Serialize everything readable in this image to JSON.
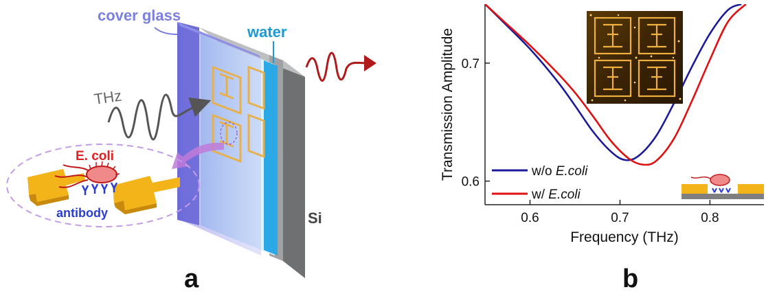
{
  "panel_a": {
    "label": "a",
    "cover_glass_label": "cover glass",
    "water_label": "water",
    "thz_label": "THz",
    "si_label": "Si",
    "ecoli_label": "E. coli",
    "antibody_label": "antibody"
  },
  "panel_b": {
    "label": "b"
  },
  "colors": {
    "cover_glass_text": "#7b7fe0",
    "water_text": "#1a9ad6",
    "ecoli_text": "#e02020",
    "antibody_text": "#2a3cd8",
    "series_without": "#1a1a9a",
    "series_with": "#e01010",
    "gold": "#f2b418",
    "dashed_ellipse": "#c49be8",
    "output_wave": "#b01a1a",
    "input_wave": "#555555"
  },
  "chart_data": {
    "type": "line",
    "xlabel": "Frequency (THz)",
    "ylabel": "Transmission Amplitude",
    "xlim": [
      0.55,
      0.86
    ],
    "ylim": [
      0.58,
      0.75
    ],
    "xticks": [
      0.6,
      0.7,
      0.8
    ],
    "xtick_labels": [
      "0.6",
      "0.7",
      "0.8"
    ],
    "yticks": [
      0.6,
      0.7
    ],
    "ytick_labels": [
      "0.6",
      "0.7"
    ],
    "grid": false,
    "legend_position": "bottom-left",
    "inset": "micrograph of gold split-ring resonator array with bacteria (top-center)",
    "series": [
      {
        "name": "w/o E.coli",
        "legend_prefix": "w/o ",
        "legend_italic": "E.coli",
        "color": "#1a1a9a",
        "x": [
          0.55,
          0.57,
          0.6,
          0.63,
          0.65,
          0.67,
          0.69,
          0.705,
          0.72,
          0.74,
          0.76,
          0.78,
          0.8,
          0.82,
          0.835
        ],
        "y": [
          0.75,
          0.735,
          0.712,
          0.685,
          0.664,
          0.642,
          0.625,
          0.618,
          0.621,
          0.638,
          0.666,
          0.697,
          0.725,
          0.745,
          0.75
        ]
      },
      {
        "name": "w/ E.coli",
        "legend_prefix": "w/ ",
        "legend_italic": "E.coli",
        "color": "#e01010",
        "x": [
          0.55,
          0.57,
          0.6,
          0.63,
          0.65,
          0.67,
          0.69,
          0.71,
          0.725,
          0.74,
          0.76,
          0.78,
          0.8,
          0.82,
          0.84
        ],
        "y": [
          0.75,
          0.736,
          0.715,
          0.692,
          0.675,
          0.655,
          0.634,
          0.619,
          0.614,
          0.617,
          0.636,
          0.668,
          0.703,
          0.735,
          0.75
        ]
      }
    ]
  }
}
